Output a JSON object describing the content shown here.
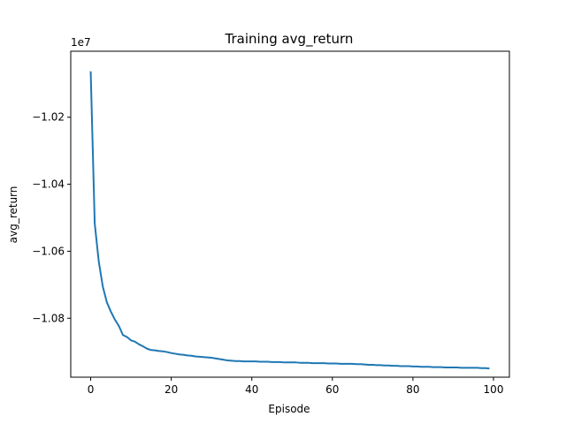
{
  "chart_data": {
    "type": "line",
    "title": "Training avg_return",
    "xlabel": "Episode",
    "ylabel": "avg_return",
    "y_offset_label": "1e7",
    "xlim": [
      -4.95,
      103.95
    ],
    "ylim": [
      -1.0976,
      -1.0003
    ],
    "xticks": [
      0,
      20,
      40,
      60,
      80,
      100
    ],
    "xtick_labels": [
      "0",
      "20",
      "40",
      "60",
      "80",
      "100"
    ],
    "yticks": [
      -1.08,
      -1.06,
      -1.04,
      -1.02
    ],
    "ytick_labels": [
      "−1.08",
      "−1.06",
      "−1.04",
      "−1.02"
    ],
    "grid": false,
    "series": [
      {
        "color": "#1f77b4",
        "x": [
          0,
          1,
          2,
          3,
          4,
          5,
          6,
          7,
          8,
          9,
          10,
          11,
          12,
          13,
          14,
          15,
          16,
          17,
          18,
          19,
          20,
          21,
          22,
          23,
          24,
          25,
          26,
          27,
          28,
          29,
          30,
          31,
          32,
          33,
          34,
          35,
          36,
          37,
          38,
          39,
          40,
          41,
          42,
          43,
          44,
          45,
          46,
          47,
          48,
          49,
          50,
          51,
          52,
          53,
          54,
          55,
          56,
          57,
          58,
          59,
          60,
          61,
          62,
          63,
          64,
          65,
          66,
          67,
          68,
          69,
          70,
          71,
          72,
          73,
          74,
          75,
          76,
          77,
          78,
          79,
          80,
          81,
          82,
          83,
          84,
          85,
          86,
          87,
          88,
          89,
          90,
          91,
          92,
          93,
          94,
          95,
          96,
          97,
          98,
          99
        ],
        "y": [
          -1.0063,
          -1.0517,
          -1.063,
          -1.0705,
          -1.0752,
          -1.078,
          -1.0804,
          -1.0823,
          -1.085,
          -1.0856,
          -1.0866,
          -1.087,
          -1.0878,
          -1.0884,
          -1.0891,
          -1.0895,
          -1.0896,
          -1.0898,
          -1.0899,
          -1.0901,
          -1.0904,
          -1.0906,
          -1.0908,
          -1.0909,
          -1.0911,
          -1.0912,
          -1.0914,
          -1.0915,
          -1.0916,
          -1.0917,
          -1.0918,
          -1.092,
          -1.0922,
          -1.0924,
          -1.0926,
          -1.0927,
          -1.0928,
          -1.0928,
          -1.0929,
          -1.0929,
          -1.0929,
          -1.0929,
          -1.093,
          -1.093,
          -1.093,
          -1.0931,
          -1.0931,
          -1.0931,
          -1.0932,
          -1.0932,
          -1.0932,
          -1.0932,
          -1.0933,
          -1.0933,
          -1.0933,
          -1.0934,
          -1.0934,
          -1.0934,
          -1.0934,
          -1.0935,
          -1.0935,
          -1.0935,
          -1.0936,
          -1.0936,
          -1.0936,
          -1.0936,
          -1.0937,
          -1.0937,
          -1.0938,
          -1.0939,
          -1.0939,
          -1.094,
          -1.094,
          -1.0941,
          -1.0941,
          -1.0942,
          -1.0942,
          -1.0943,
          -1.0943,
          -1.0943,
          -1.0944,
          -1.0944,
          -1.0945,
          -1.0945,
          -1.0945,
          -1.0946,
          -1.0946,
          -1.0946,
          -1.0947,
          -1.0947,
          -1.0947,
          -1.0947,
          -1.0948,
          -1.0948,
          -1.0948,
          -1.0948,
          -1.0948,
          -1.0949,
          -1.0949,
          -1.095
        ]
      }
    ]
  }
}
